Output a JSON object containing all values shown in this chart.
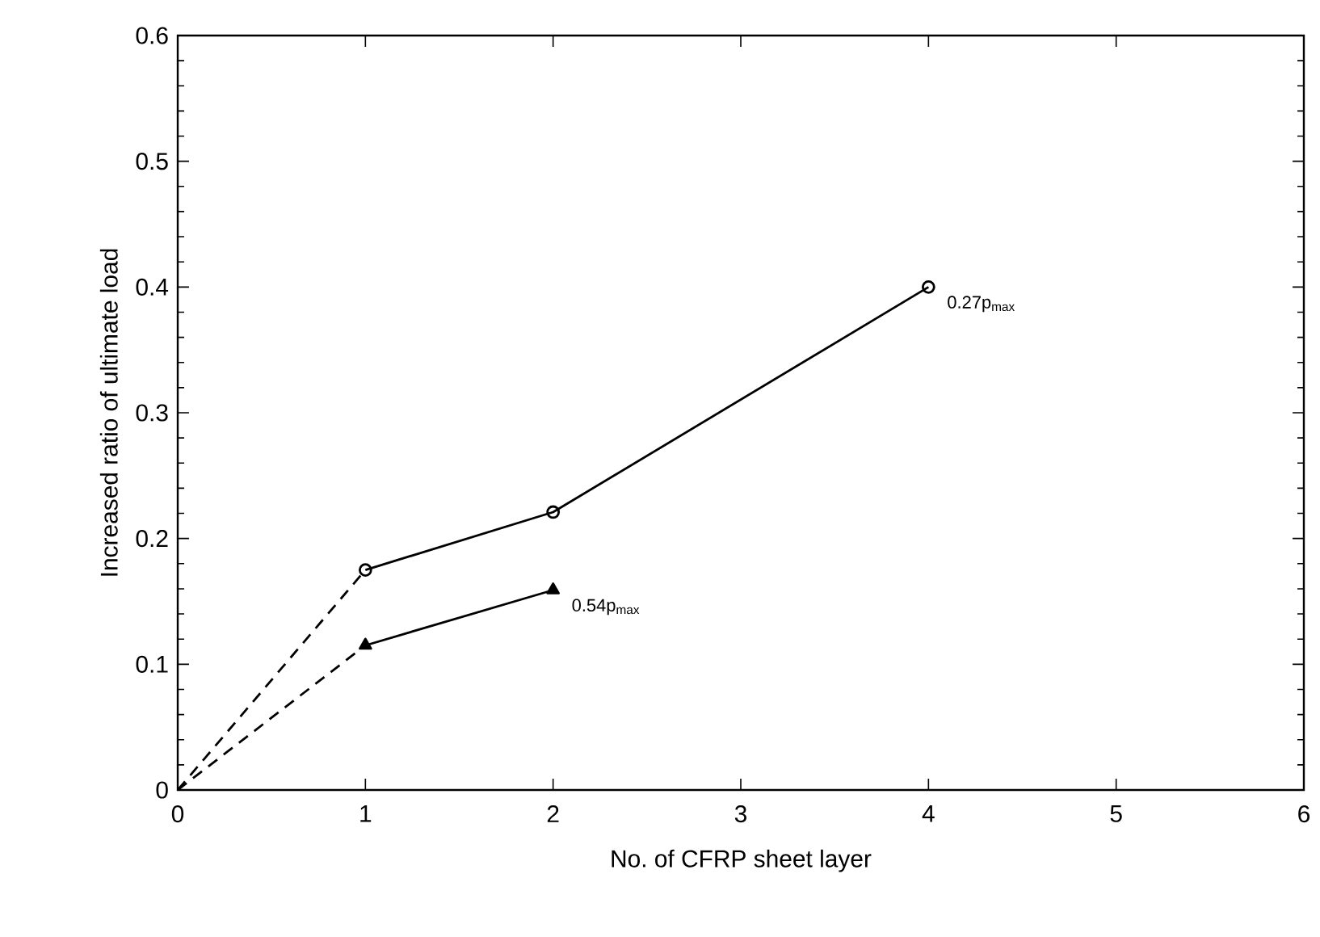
{
  "chart_data": {
    "type": "line",
    "xlabel": "No. of CFRP sheet layer",
    "ylabel": "Increased ratio of ultimate load",
    "xlim": [
      0,
      6
    ],
    "xticks": [
      0,
      1,
      2,
      3,
      4,
      5,
      6
    ],
    "ylim": [
      0,
      0.6
    ],
    "yticks": [
      0,
      0.1,
      0.2,
      0.3,
      0.4,
      0.5,
      0.6
    ],
    "series": [
      {
        "color": "#000000",
        "x": [
          1,
          2,
          4
        ],
        "values": [
          0.175,
          0.221,
          0.4
        ],
        "marker": "circle",
        "line_style": "solid"
      },
      {
        "color": "#000000",
        "x": [
          1,
          2
        ],
        "values": [
          0.115,
          0.159
        ],
        "marker": "triangle",
        "line_style": "solid"
      },
      {
        "color": "#000000",
        "x": [
          0,
          1
        ],
        "values": [
          0,
          0.175
        ],
        "marker": "none",
        "line_style": "dashed"
      },
      {
        "color": "#000000",
        "x": [
          0,
          1
        ],
        "values": [
          0,
          0.115
        ],
        "marker": "none",
        "line_style": "dashed"
      }
    ],
    "annotations": [
      {
        "text": "0.27p$_{max}$",
        "x": 4,
        "y": 0.4
      },
      {
        "text": "0.54p$_{max}$",
        "x": 2,
        "y": 0.159
      }
    ]
  }
}
